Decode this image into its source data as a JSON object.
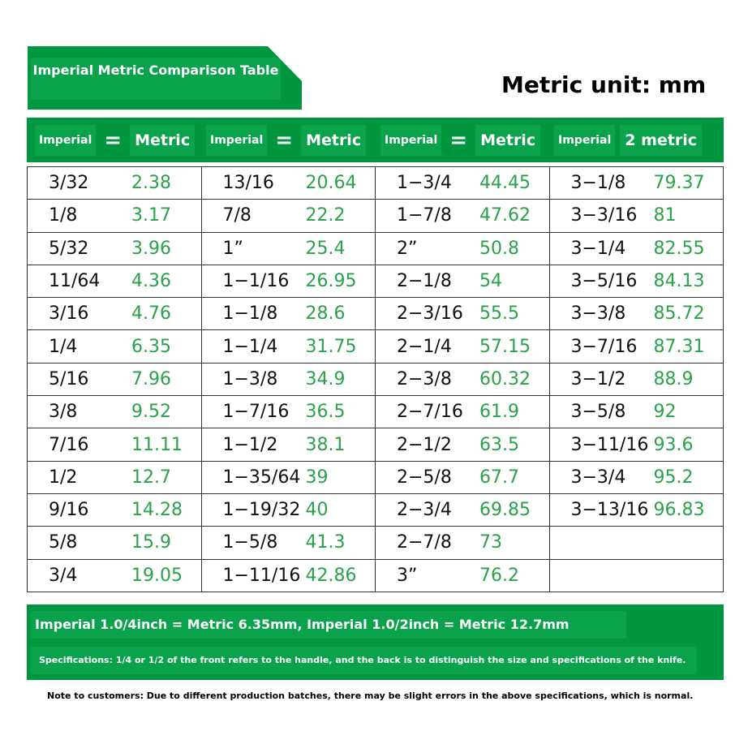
{
  "title": "Imperial Metric Comparison Table",
  "unit_label": "Metric unit: mm",
  "header": {
    "columns": [
      {
        "imperial": "Imperial",
        "sep": "=",
        "metric": "Metric"
      },
      {
        "imperial": "Imperial",
        "sep": "=",
        "metric": "Metric"
      },
      {
        "imperial": "Imperial",
        "sep": "=",
        "metric": "Metric"
      },
      {
        "imperial": "Imperial",
        "sep": "",
        "metric": "2 metric"
      }
    ]
  },
  "colors": {
    "green": "#009640",
    "green_light": "#0aa24a",
    "metric_text": "#2aa24a"
  },
  "table": [
    [
      [
        "3/32",
        "2.38"
      ],
      [
        "1/8",
        "3.17"
      ],
      [
        "5/32",
        "3.96"
      ],
      [
        "11/64",
        "4.36"
      ],
      [
        "3/16",
        "4.76"
      ],
      [
        "1/4",
        "6.35"
      ],
      [
        "5/16",
        "7.96"
      ],
      [
        "3/8",
        "9.52"
      ],
      [
        "7/16",
        "11.11"
      ],
      [
        "1/2",
        "12.7"
      ],
      [
        "9/16",
        "14.28"
      ],
      [
        "5/8",
        "15.9"
      ],
      [
        "3/4",
        "19.05"
      ]
    ],
    [
      [
        "13/16",
        "20.64"
      ],
      [
        "7/8",
        "22.2"
      ],
      [
        "1”",
        "25.4"
      ],
      [
        "1−1/16",
        "26.95"
      ],
      [
        "1−1/8",
        "28.6"
      ],
      [
        "1−1/4",
        "31.75"
      ],
      [
        "1−3/8",
        "34.9"
      ],
      [
        "1−7/16",
        "36.5"
      ],
      [
        "1−1/2",
        "38.1"
      ],
      [
        "1−35/64",
        "39"
      ],
      [
        "1−19/32",
        "40"
      ],
      [
        "1−5/8",
        "41.3"
      ],
      [
        "1−11/16",
        "42.86"
      ]
    ],
    [
      [
        "1−3/4",
        "44.45"
      ],
      [
        "1−7/8",
        "47.62"
      ],
      [
        "2”",
        "50.8"
      ],
      [
        "2−1/8",
        "54"
      ],
      [
        "2−3/16",
        "55.5"
      ],
      [
        "2−1/4",
        "57.15"
      ],
      [
        "2−3/8",
        "60.32"
      ],
      [
        "2−7/16",
        "61.9"
      ],
      [
        "2−1/2",
        "63.5"
      ],
      [
        "2−5/8",
        "67.7"
      ],
      [
        "2−3/4",
        "69.85"
      ],
      [
        "2−7/8",
        "73"
      ],
      [
        "3”",
        "76.2"
      ]
    ],
    [
      [
        "3−1/8",
        "79.37"
      ],
      [
        "3−3/16",
        "81"
      ],
      [
        "3−1/4",
        "82.55"
      ],
      [
        "3−5/16",
        "84.13"
      ],
      [
        "3−3/8",
        "85.72"
      ],
      [
        "3−7/16",
        "87.31"
      ],
      [
        "3−1/2",
        "88.9"
      ],
      [
        "3−5/8",
        "92"
      ],
      [
        "3−11/16",
        "93.6"
      ],
      [
        "3−3/4",
        "95.2"
      ],
      [
        "3−13/16",
        "96.83"
      ],
      [
        "",
        ""
      ],
      [
        "",
        ""
      ]
    ]
  ],
  "footer": {
    "line1": "Imperial 1.0/4inch = Metric 6.35mm, Imperial 1.0/2inch = Metric 12.7mm",
    "line2": "Specifications: 1/4 or 1/2 of the front refers to the handle, and the back is to distinguish the size and specifications of the knife."
  },
  "note": "Note to customers: Due to different production batches, there may be slight errors in the above specifications, which is normal."
}
